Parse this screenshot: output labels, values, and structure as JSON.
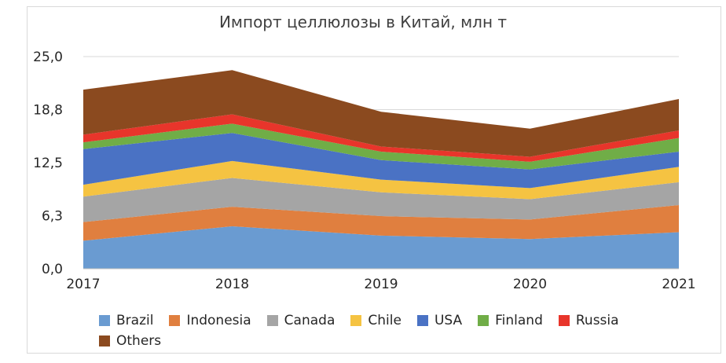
{
  "chart_data": {
    "type": "area",
    "stacked": true,
    "title": "Импорт целлюлозы в Китай, млн т",
    "categories": [
      "2017",
      "2018",
      "2019",
      "2020",
      "2021"
    ],
    "y_ticks": [
      "0,0",
      "6,3",
      "12,5",
      "18,8",
      "25,0"
    ],
    "ylim": [
      0,
      25
    ],
    "grid": "horizontal",
    "legend_position": "bottom",
    "series": [
      {
        "name": "Brazil",
        "color": "#6a9bd1",
        "values": [
          3.3,
          5.0,
          3.9,
          3.5,
          4.3
        ]
      },
      {
        "name": "Indonesia",
        "color": "#e07f3f",
        "values": [
          2.2,
          2.3,
          2.3,
          2.3,
          3.2
        ]
      },
      {
        "name": "Canada",
        "color": "#a5a5a5",
        "values": [
          3.0,
          3.4,
          2.8,
          2.4,
          2.7
        ]
      },
      {
        "name": "Chile",
        "color": "#f5c342",
        "values": [
          1.4,
          2.0,
          1.5,
          1.3,
          1.8
        ]
      },
      {
        "name": "USA",
        "color": "#4a72c4",
        "values": [
          4.2,
          3.3,
          2.3,
          2.2,
          1.8
        ]
      },
      {
        "name": "Finland",
        "color": "#70ad47",
        "values": [
          0.8,
          1.1,
          1.0,
          0.9,
          1.6
        ]
      },
      {
        "name": "Russia",
        "color": "#e8352b",
        "values": [
          0.9,
          1.1,
          0.6,
          0.6,
          0.9
        ]
      },
      {
        "name": "Others",
        "color": "#8b4a1f",
        "values": [
          5.3,
          5.2,
          4.1,
          3.3,
          3.7
        ]
      }
    ]
  }
}
